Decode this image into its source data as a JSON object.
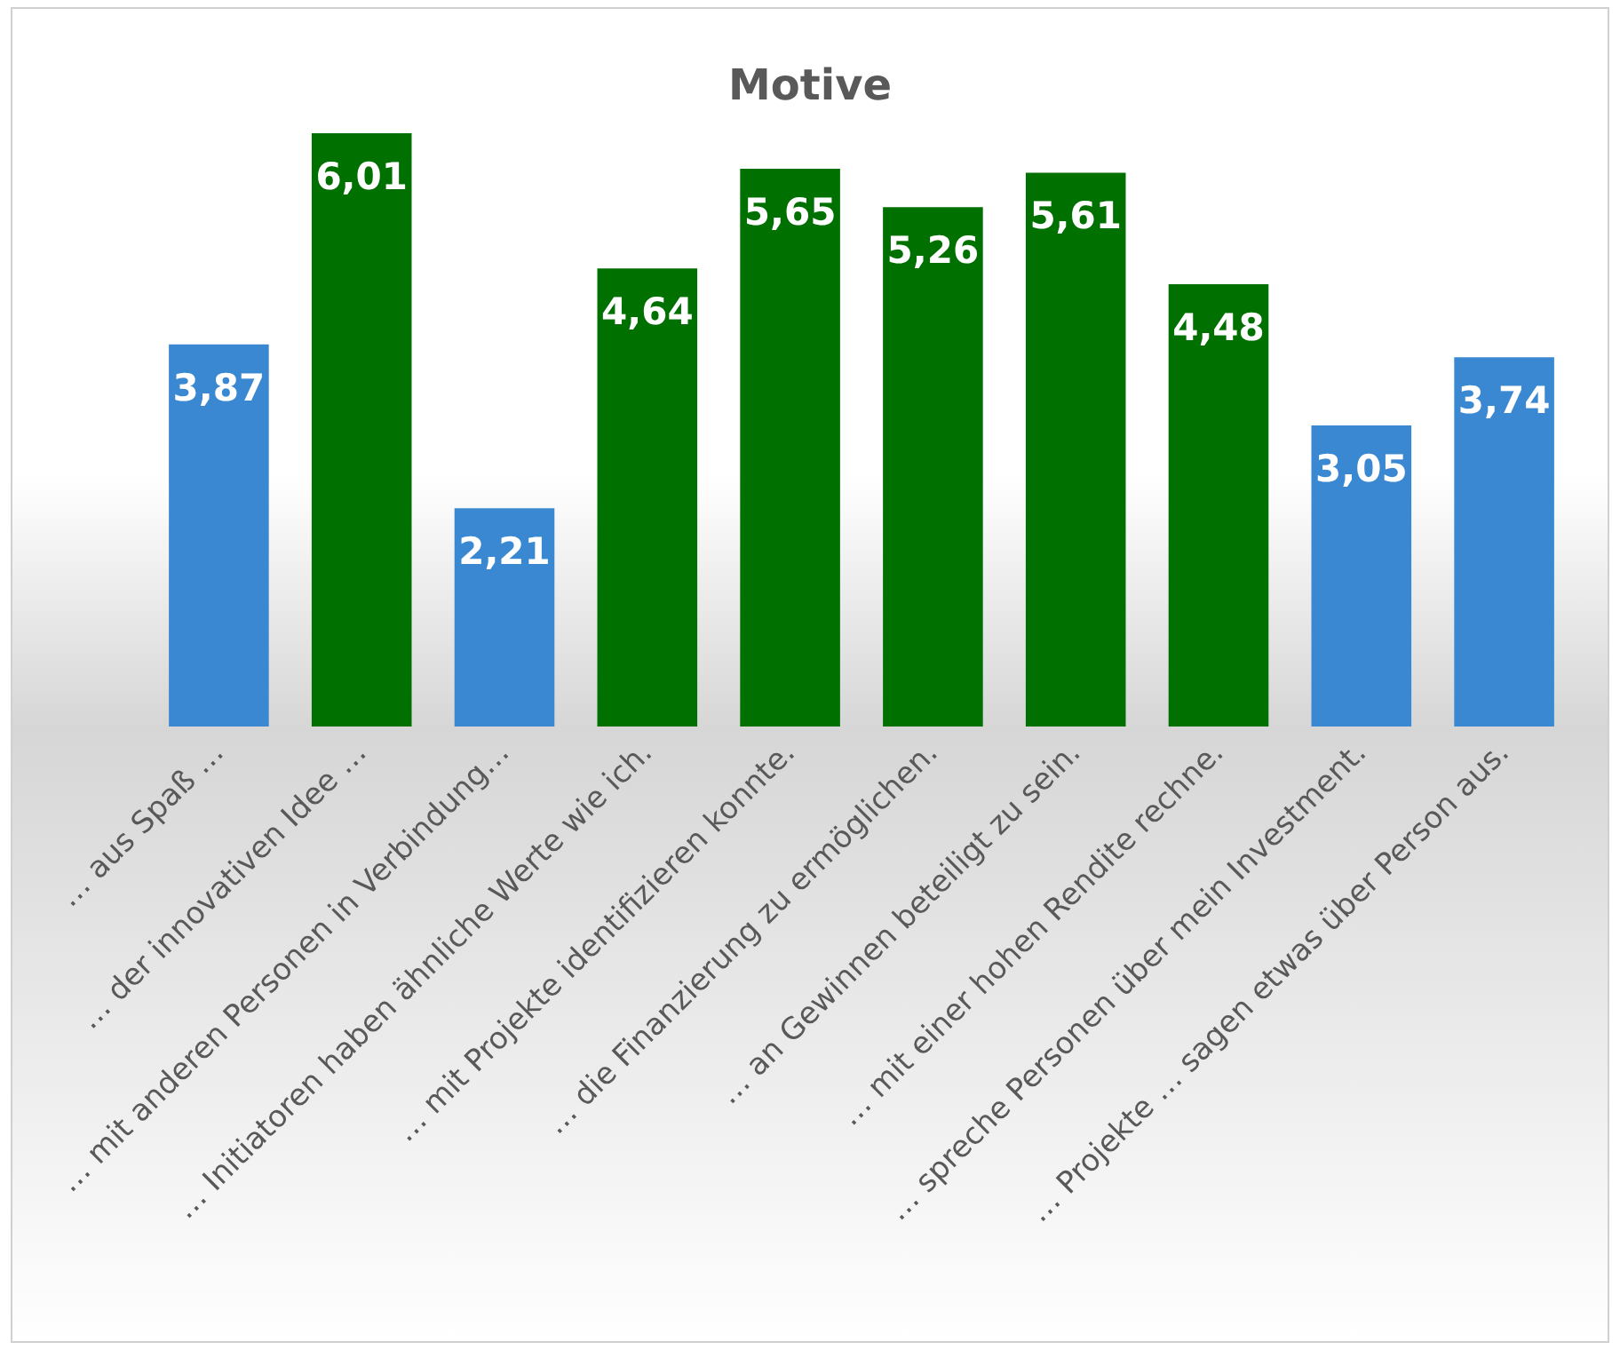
{
  "chart_data": {
    "type": "bar",
    "title": "Motive",
    "categories": [
      "… aus Spaß …",
      "… der innovativen Idee …",
      "… mit anderen Personen in Verbindung…",
      "… Initiatoren haben ähnliche Werte wie ich.",
      "… mit Projekte identifizieren konnte.",
      "… die Finanzierung zu ermöglichen.",
      "… an Gewinnen beteiligt zu sein.",
      "… mit einer hohen Rendite rechne.",
      "… spreche Personen über mein Investment.",
      "… Projekte … sagen etwas über Person aus."
    ],
    "values": [
      3.87,
      6.01,
      2.21,
      4.64,
      5.65,
      5.26,
      5.61,
      4.48,
      3.05,
      3.74
    ],
    "colors": [
      "#3a88d2",
      "#007000",
      "#3a88d2",
      "#007000",
      "#007000",
      "#007000",
      "#007000",
      "#007000",
      "#3a88d2",
      "#3a88d2"
    ],
    "value_labels": [
      "3,87",
      "6,01",
      "2,21",
      "4,64",
      "5,65",
      "5,26",
      "5,61",
      "4,48",
      "3,05",
      "3,74"
    ]
  }
}
